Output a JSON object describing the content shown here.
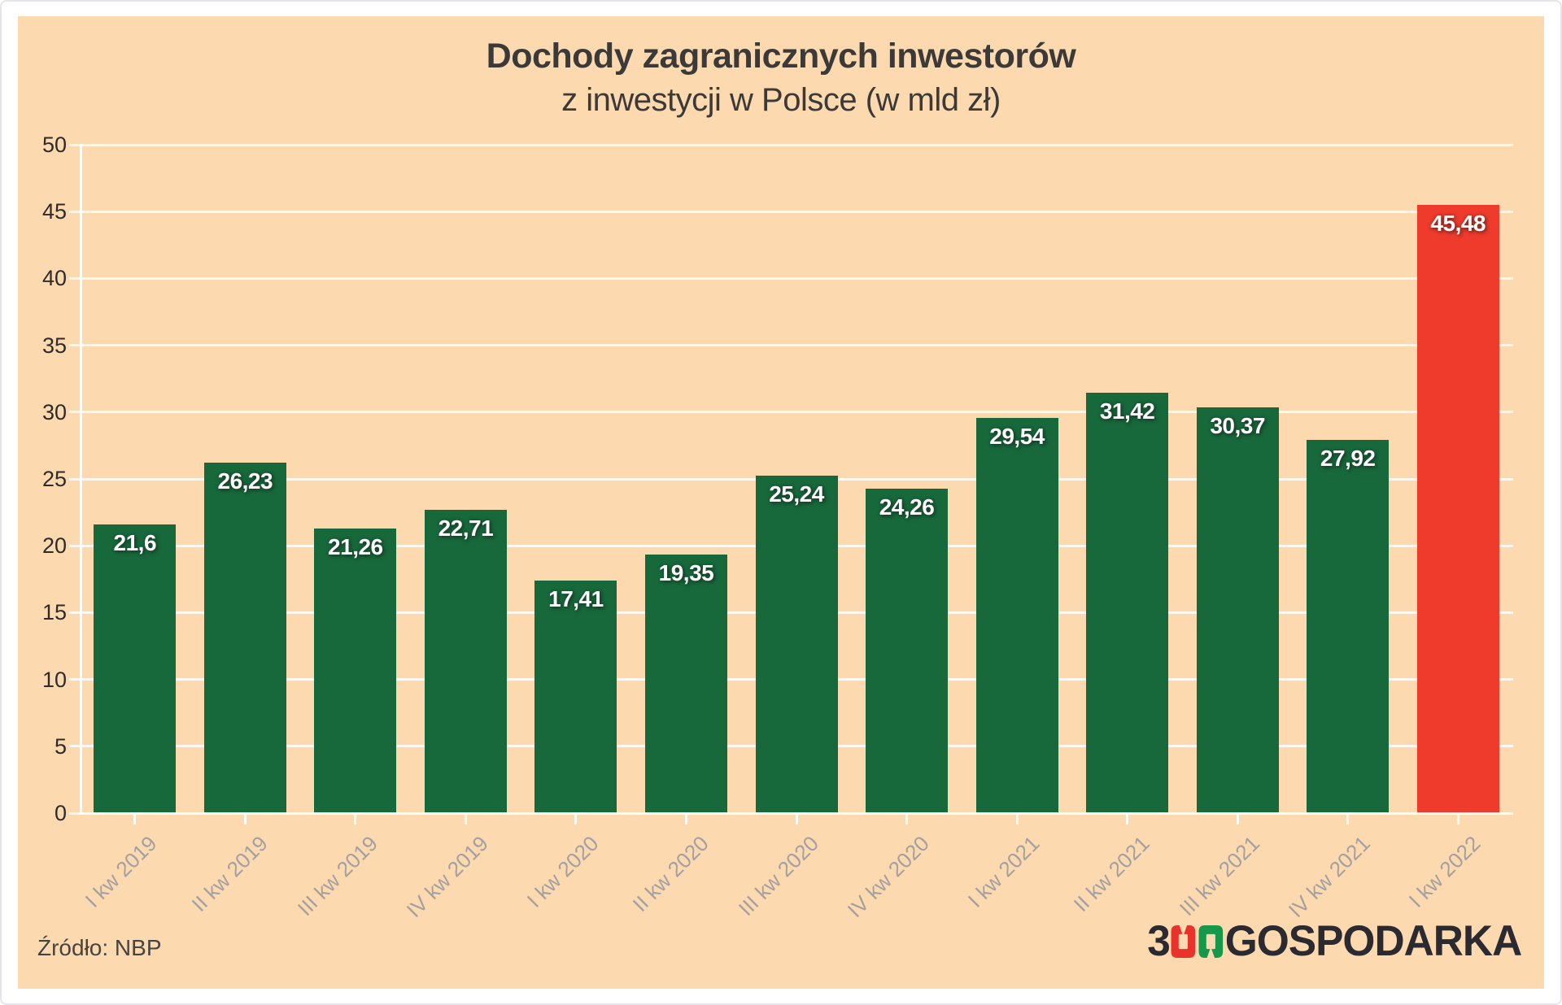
{
  "chart_data": {
    "type": "bar",
    "title": "Dochody zagranicznych inwestorów",
    "subtitle": "z inwestycji w Polsce (w mld zł)",
    "categories": [
      "I kw 2019",
      "II kw 2019",
      "III kw 2019",
      "IV kw 2019",
      "I kw 2020",
      "II kw 2020",
      "III kw 2020",
      "IV kw 2020",
      "I kw 2021",
      "II kw 2021",
      "III kw 2021",
      "IV kw 2021",
      "I kw 2022"
    ],
    "values": [
      21.6,
      26.23,
      21.26,
      22.71,
      17.41,
      19.35,
      25.24,
      24.26,
      29.54,
      31.42,
      30.37,
      27.92,
      45.48
    ],
    "value_labels": [
      "21,6",
      "26,23",
      "21,26",
      "22,71",
      "17,41",
      "19,35",
      "25,24",
      "24,26",
      "29,54",
      "31,42",
      "30,37",
      "27,92",
      "45,48"
    ],
    "ylim": [
      0,
      50
    ],
    "yticks": [
      0,
      5,
      10,
      15,
      20,
      25,
      30,
      35,
      40,
      45,
      50
    ],
    "grid": "horizontal",
    "legend": "none",
    "bar_color": "#17693b",
    "highlight_color": "#ee3b2c",
    "highlight_index": 12,
    "background_color": "#fcd9af",
    "xlabel": "",
    "ylabel": ""
  },
  "source_label": "Źródło: NBP",
  "logo": {
    "three": "3",
    "zero_red": "0",
    "zero_green": "0",
    "rest": "GOSPODARKA",
    "dark_color": "#2b2a31",
    "red_color": "#e9332a",
    "green_color": "#16984a"
  }
}
